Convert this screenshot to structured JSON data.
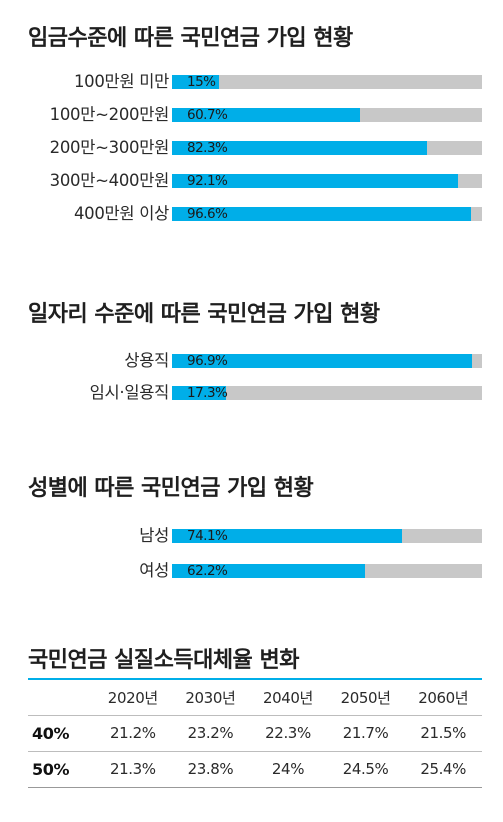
{
  "chart_data": [
    {
      "type": "bar",
      "orientation": "horizontal",
      "title": "임금수준에 따른 국민연금 가입 현황",
      "categories": [
        "100만원 미만",
        "100만~200만원",
        "200만~300만원",
        "300만~400만원",
        "400만원 이상"
      ],
      "values": [
        15,
        60.7,
        82.3,
        92.1,
        96.6
      ],
      "value_labels": [
        "15%",
        "60.7%",
        "82.3%",
        "92.1%",
        "96.6%"
      ],
      "xlim": [
        0,
        100
      ],
      "colors": {
        "fill": "#00aee8",
        "track": "#c8c8c8"
      }
    },
    {
      "type": "bar",
      "orientation": "horizontal",
      "title": "일자리 수준에 따른 국민연금 가입 현황",
      "categories": [
        "상용직",
        "임시·일용직"
      ],
      "values": [
        96.9,
        17.3
      ],
      "value_labels": [
        "96.9%",
        "17.3%"
      ],
      "xlim": [
        0,
        100
      ],
      "colors": {
        "fill": "#00aee8",
        "track": "#c8c8c8"
      }
    },
    {
      "type": "bar",
      "orientation": "horizontal",
      "title": "성별에 따른 국민연금 가입 현황",
      "categories": [
        "남성",
        "여성"
      ],
      "values": [
        74.1,
        62.2
      ],
      "value_labels": [
        "74.1%",
        "62.2%"
      ],
      "xlim": [
        0,
        100
      ],
      "colors": {
        "fill": "#00aee8",
        "track": "#c8c8c8"
      }
    },
    {
      "type": "table",
      "title": "국민연금 실질소득대체율 변화",
      "columns": [
        "",
        "2020년",
        "2030년",
        "2040년",
        "2050년",
        "2060년"
      ],
      "rows": [
        {
          "label": "40%",
          "cells": [
            "21.2%",
            "23.2%",
            "22.3%",
            "21.7%",
            "21.5%"
          ]
        },
        {
          "label": "50%",
          "cells": [
            "21.3%",
            "23.8%",
            "24%",
            "24.5%",
            "25.4%"
          ]
        }
      ],
      "colors": {
        "rule": "#00aee8"
      }
    }
  ]
}
